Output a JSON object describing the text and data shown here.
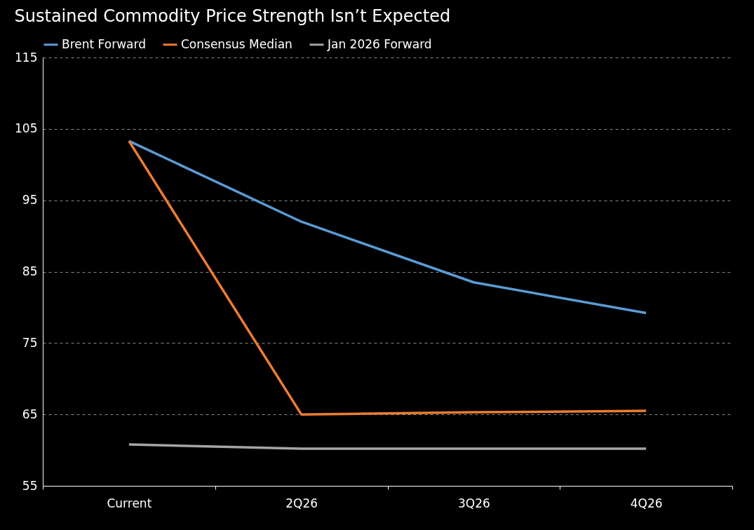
{
  "chart_data": {
    "type": "line",
    "title": "Sustained Commodity Price Strength Isn’t Expected",
    "categories": [
      "Current",
      "2Q26",
      "3Q26",
      "4Q26"
    ],
    "series": [
      {
        "name": "Brent Forward",
        "color": "#5b9bd5",
        "values": [
          103.3,
          92,
          83.5,
          79.2
        ]
      },
      {
        "name": "Consensus Median",
        "color": "#ed7d31",
        "values": [
          103.3,
          65,
          65.3,
          65.5
        ]
      },
      {
        "name": "Jan 2026 Forward",
        "color": "#a5a5a5",
        "values": [
          60.8,
          60.2,
          60.2,
          60.2
        ]
      }
    ],
    "ylim": [
      55,
      115
    ],
    "yticks": [
      55,
      65,
      75,
      85,
      95,
      105,
      115
    ],
    "grid": "y",
    "legend": "top left",
    "marker": "none",
    "line_style": "solid"
  }
}
